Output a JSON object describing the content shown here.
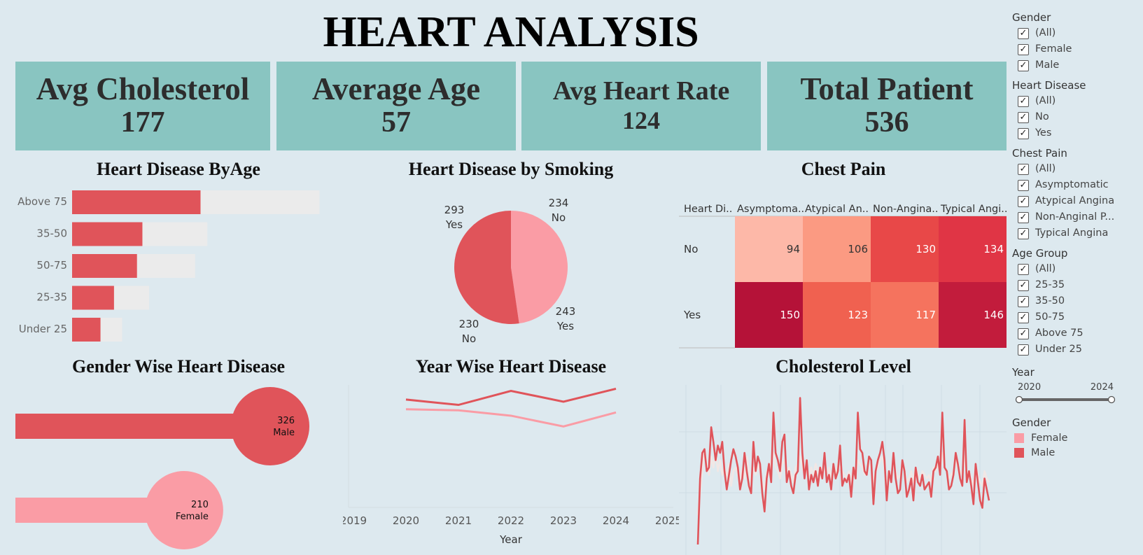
{
  "title": "HEART ANALYSIS",
  "kpis": [
    {
      "label": "Avg Cholesterol",
      "value": "177"
    },
    {
      "label": "Average Age",
      "value": "57"
    },
    {
      "label": "Avg Heart Rate",
      "value": "124"
    },
    {
      "label": "Total Patient",
      "value": "536"
    }
  ],
  "colors": {
    "male": "#e0545a",
    "female": "#fa9ca5",
    "kpi_bg": "#89c5c1",
    "bar_bg": "#ebebeb",
    "background": "#dde9ef"
  },
  "filters": [
    {
      "title": "Gender",
      "items": [
        "(All)",
        "Female",
        "Male"
      ]
    },
    {
      "title": "Heart Disease",
      "items": [
        "(All)",
        "No",
        "Yes"
      ]
    },
    {
      "title": "Chest Pain",
      "items": [
        "(All)",
        "Asymptomatic",
        "Atypical Angina",
        "Non-Anginal P...",
        "Typical Angina"
      ]
    },
    {
      "title": "Age Group",
      "items": [
        "(All)",
        "25-35",
        "35-50",
        "50-75",
        "Above 75",
        "Under 25"
      ]
    }
  ],
  "checkmark": "✓",
  "year_filter": {
    "title": "Year",
    "min": "2020",
    "max": "2024"
  },
  "legend": {
    "title": "Gender",
    "items": [
      {
        "label": "Female",
        "color": "#fa9ca5"
      },
      {
        "label": "Male",
        "color": "#e0545a"
      }
    ]
  },
  "chart_data": [
    {
      "type": "bar",
      "title": "Heart Disease ByAge",
      "categories": [
        "Above 75",
        "35-50",
        "50-75",
        "25-35",
        "Under 25"
      ],
      "series": [
        {
          "values": [
            95,
            52,
            48,
            31,
            21
          ]
        },
        {
          "values": [
            183,
            100,
            91,
            57,
            37
          ]
        }
      ],
      "xlim": [
        0,
        190
      ]
    },
    {
      "type": "pie",
      "title": "Heart Disease by Smoking",
      "slices": [
        {
          "value": 234,
          "label": "No",
          "color": "#fa9ca5"
        },
        {
          "value": 243,
          "label": "Yes",
          "color": "#fa9ca5"
        },
        {
          "value": 230,
          "label": "No",
          "color": "#e0545a"
        },
        {
          "value": 293,
          "label": "Yes",
          "color": "#e0545a"
        }
      ]
    },
    {
      "type": "heatmap",
      "title": "Chest Pain",
      "row_header": "Heart Di..",
      "columns": [
        "Asymptoma..",
        "Atypical An..",
        "Non-Angina..",
        "Typical Angi.."
      ],
      "rows": [
        "No",
        "Yes"
      ],
      "values": [
        [
          94,
          106,
          130,
          134
        ],
        [
          150,
          123,
          117,
          146
        ]
      ],
      "vmin": 94,
      "vmax": 150
    },
    {
      "type": "bar",
      "title": "Gender Wise Heart Disease",
      "categories": [
        "Male",
        "Female"
      ],
      "values": [
        326,
        210
      ],
      "colors": [
        "#e0545a",
        "#fa9ca5"
      ]
    },
    {
      "type": "line",
      "title": "Year Wise Heart Disease",
      "xlabel": "Year",
      "x": [
        2020,
        2021,
        2022,
        2023,
        2024
      ],
      "xticks": [
        "2019",
        "2020",
        "2021",
        "2022",
        "2023",
        "2024",
        "2025"
      ],
      "xlim": [
        2019,
        2025
      ],
      "ylim": [
        0,
        120
      ],
      "series": [
        {
          "values": [
            100,
            95,
            108,
            98,
            110
          ],
          "color": "#e0545a"
        },
        {
          "values": [
            91,
            90,
            85,
            75,
            88
          ],
          "color": "#fa9ca5"
        }
      ]
    },
    {
      "type": "line",
      "title": "Cholesterol Level",
      "ylim": [
        0,
        420
      ],
      "series": [
        {
          "color": "#e0545a",
          "values": [
            0,
            180,
            250,
            260,
            200,
            210,
            320,
            280,
            230,
            270,
            250,
            280,
            200,
            150,
            190,
            230,
            260,
            240,
            210,
            150,
            180,
            250,
            200,
            160,
            140,
            280,
            200,
            240,
            220,
            140,
            90,
            180,
            220,
            170,
            360,
            250,
            230,
            200,
            280,
            300,
            170,
            200,
            160,
            140,
            190,
            200,
            400,
            250,
            180,
            230,
            150,
            190,
            170,
            200,
            160,
            210,
            180,
            250,
            170,
            190,
            150,
            220,
            180,
            200,
            270,
            160,
            180,
            170,
            190,
            130,
            210,
            180,
            360,
            260,
            250,
            200,
            190,
            240,
            230,
            110,
            200,
            230,
            250,
            280,
            230,
            120,
            200,
            170,
            250,
            180,
            140,
            150,
            230,
            200,
            130,
            150,
            180,
            120,
            210,
            170,
            160,
            190,
            150,
            160,
            170,
            130,
            200,
            210,
            240,
            190,
            360,
            210,
            200,
            150,
            160,
            190,
            250,
            220,
            180,
            160,
            340,
            170,
            200,
            160,
            110,
            220,
            170,
            120,
            100,
            180,
            150,
            120
          ]
        },
        {
          "color": "#f1e7e5",
          "values": [
            80,
            140,
            200,
            260,
            220,
            190,
            240,
            210,
            250,
            200,
            230,
            190,
            210,
            180,
            220,
            160,
            200,
            210,
            190,
            170,
            210,
            180,
            240,
            200,
            170,
            210,
            190,
            220,
            200,
            170,
            150,
            200,
            190,
            230,
            250,
            210,
            200,
            180,
            220,
            230,
            200,
            210,
            190,
            170,
            210,
            220,
            240,
            210,
            190,
            200,
            180,
            210,
            190,
            220,
            200,
            180,
            210,
            200,
            190,
            210,
            180,
            200,
            190,
            220,
            210,
            200,
            190,
            180,
            200,
            170,
            210,
            190,
            230,
            220,
            210,
            190,
            200,
            220,
            210,
            170,
            200,
            210,
            230,
            240,
            210,
            160,
            200,
            190,
            220,
            200,
            180,
            190,
            210,
            200,
            170,
            180,
            200,
            170,
            210,
            190,
            180,
            200,
            190,
            180,
            190,
            170,
            210,
            200,
            220,
            200,
            250,
            210,
            200,
            180,
            190,
            200,
            230,
            210,
            200,
            190,
            240,
            190,
            200,
            180,
            160,
            210,
            190,
            170,
            160,
            200,
            180,
            170
          ]
        }
      ]
    }
  ]
}
